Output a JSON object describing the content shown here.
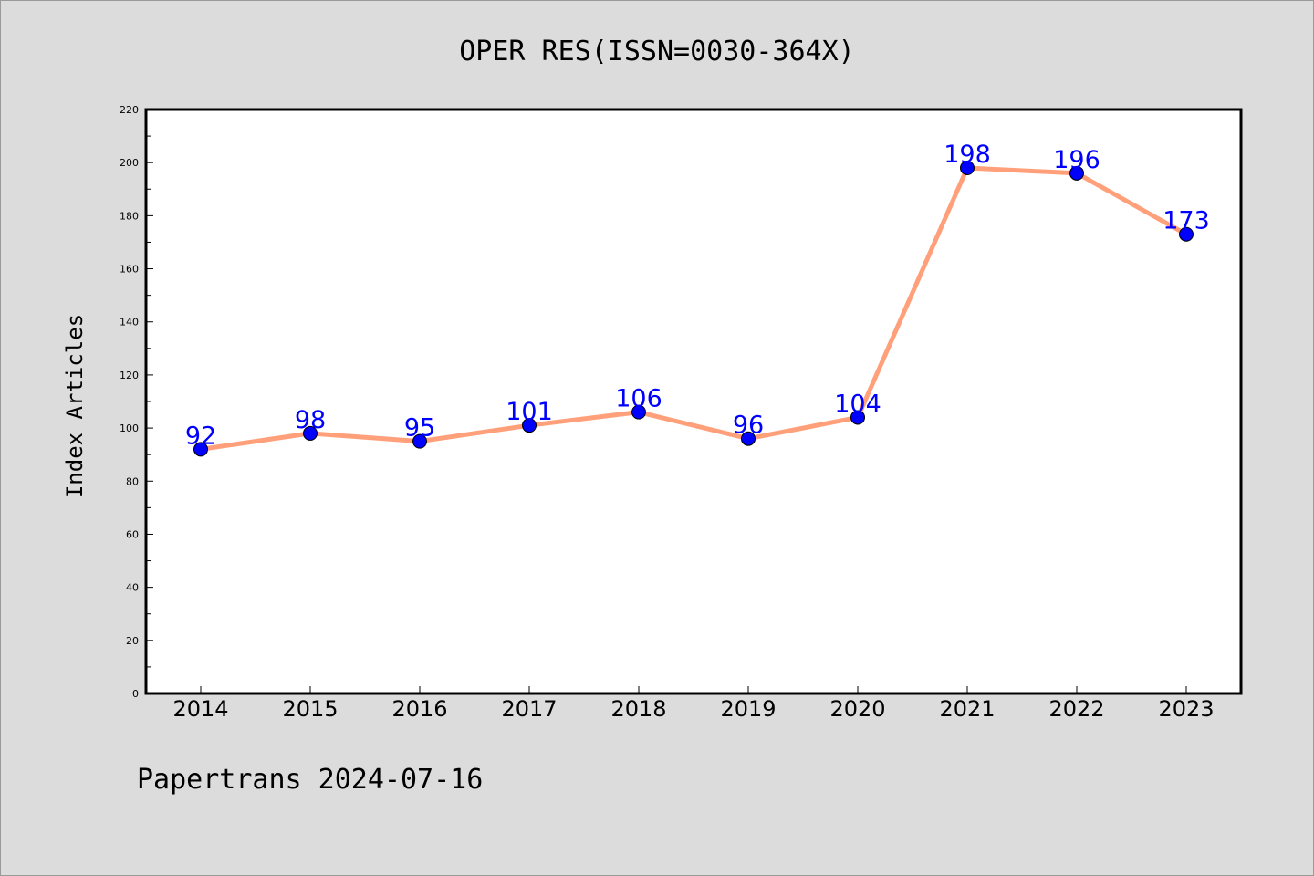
{
  "chart_data": {
    "type": "line",
    "title": "OPER RES(ISSN=0030-364X)",
    "xlabel": "",
    "ylabel": "Index Articles",
    "categories": [
      "2014",
      "2015",
      "2016",
      "2017",
      "2018",
      "2019",
      "2020",
      "2021",
      "2022",
      "2023"
    ],
    "series": [
      {
        "values": [
          92,
          98,
          95,
          101,
          106,
          96,
          104,
          198,
          196,
          173
        ]
      }
    ],
    "ylim": [
      0,
      220
    ],
    "yticks": [
      0,
      20,
      40,
      60,
      80,
      100,
      120,
      140,
      160,
      180,
      200,
      220
    ],
    "grid": false,
    "legend": "none",
    "colors": {
      "line": "#ffa07a",
      "marker": "#0000ff",
      "data_label": "#0000ff",
      "background": "#dcdcdc",
      "plot_background": "#ffffff"
    }
  },
  "footer": {
    "credit": "Papertrans 2024-07-16"
  }
}
